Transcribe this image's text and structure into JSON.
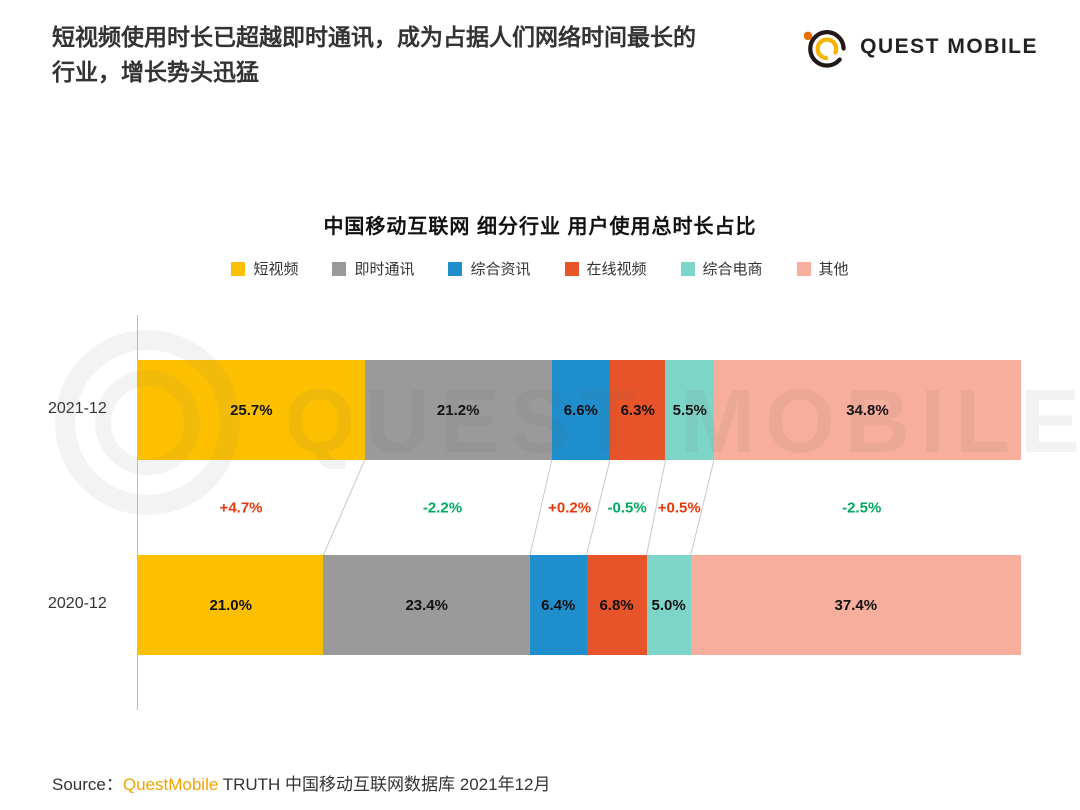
{
  "header": {
    "title": "短视频使用时长已超越即时通讯，成为占据人们网络时间最长的\n行业，增长势头迅猛",
    "logo_text": "QUEST MOBILE"
  },
  "chart_data": {
    "type": "bar",
    "subtype": "horizontal-stacked-100pct",
    "title": "中国移动互联网 细分行业 用户使用总时长占比",
    "legend_position": "top",
    "categories": [
      "短视频",
      "即时通讯",
      "综合资讯",
      "在线视频",
      "综合电商",
      "其他"
    ],
    "colors": [
      "#fdc000",
      "#9a9a9a",
      "#1f8ecd",
      "#e8542a",
      "#7dd5c8",
      "#f8ae9c"
    ],
    "rows": [
      {
        "label": "2021-12",
        "values": [
          25.7,
          21.2,
          6.6,
          6.3,
          5.5,
          34.8
        ]
      },
      {
        "label": "2020-12",
        "values": [
          21.0,
          23.4,
          6.4,
          6.8,
          5.0,
          37.4
        ]
      }
    ],
    "changes": [
      {
        "value": "+4.7%",
        "direction": "up"
      },
      {
        "value": "-2.2%",
        "direction": "down"
      },
      {
        "value": "+0.2%",
        "direction": "up"
      },
      {
        "value": "-0.5%",
        "direction": "down"
      },
      {
        "value": "+0.5%",
        "direction": "up"
      },
      {
        "value": "-2.5%",
        "direction": "down"
      }
    ],
    "change_colors": {
      "up": "#e8380d",
      "down": "#00a860"
    },
    "unit": "%"
  },
  "watermark": {
    "text": "QUEST MOBILE"
  },
  "source": {
    "prefix": "Source：",
    "brand": "QuestMobile",
    "suffix": " TRUTH 中国移动互联网数据库 2021年12月"
  }
}
